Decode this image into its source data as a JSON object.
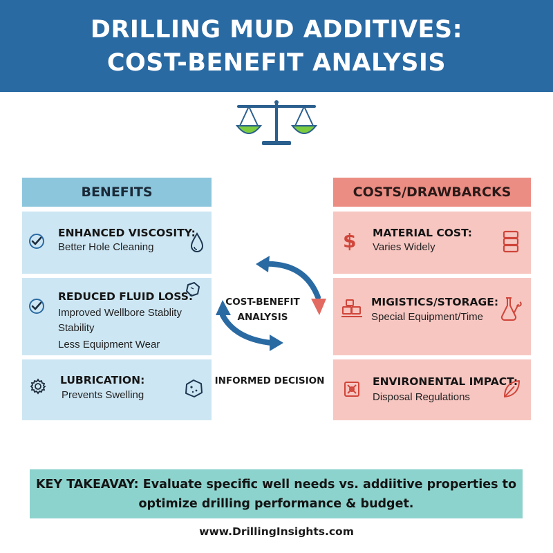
{
  "header": {
    "title_line1": "DRILLING MUD ADDITIVES:",
    "title_line2": "COST-BENEFIT ANALYSIS",
    "icon": "balance-scale-icon",
    "accent": "#2a6aa3"
  },
  "benefits": {
    "header": "BENEFITS",
    "color": "#8cc6dd",
    "items": [
      {
        "title": "ENHANCED VISCOSITY:",
        "lines": [
          "Better Hole Cleaning"
        ],
        "left_icon": "checkmark-circle-icon",
        "right_icon": "droplet-icon"
      },
      {
        "title": "REDUCED FLUID LOSS:",
        "lines": [
          "Improved Wellbore Stablity",
          "Stability",
          "Less Equipment Wear"
        ],
        "left_icon": "checkmark-circle-icon",
        "right_icon": "rock-icon"
      },
      {
        "title": "LUBRICATION:",
        "lines": [
          "Prevents Swelling"
        ],
        "left_icon": "gear-icon",
        "right_icon": "rock-icon"
      }
    ]
  },
  "costs": {
    "header": "COSTS/DRAWBARCKS",
    "color": "#ec8d84",
    "items": [
      {
        "title": "MATERIAL COST:",
        "lines": [
          "Varies Widely"
        ],
        "left_icon": "dollar-icon",
        "right_icon": "barrel-stack-icon"
      },
      {
        "title": "MIGISTICS/STORAGE:",
        "lines": [
          "Special Equipment/Time"
        ],
        "left_icon": "warehouse-icon",
        "right_icon": "flask-wrench-icon"
      },
      {
        "title": "ENVIRONENTAL IMPACT:",
        "lines": [
          "Disposal Regulations"
        ],
        "left_icon": "hazard-icon",
        "right_icon": "leaf-icon"
      }
    ]
  },
  "center": {
    "analysis_line1": "COST-BENEFIT",
    "analysis_line2": "ANALYSIS",
    "decision": "INFORMED DECISION"
  },
  "takeaway": {
    "line1": "KEY TAKEAVAY: Evaluate specific well needs vs. addiitive properties to",
    "line2": "optimize drilling performance & budget.",
    "color": "#8dd3cd"
  },
  "footer": {
    "url": "www.DrillingInsights.com"
  }
}
